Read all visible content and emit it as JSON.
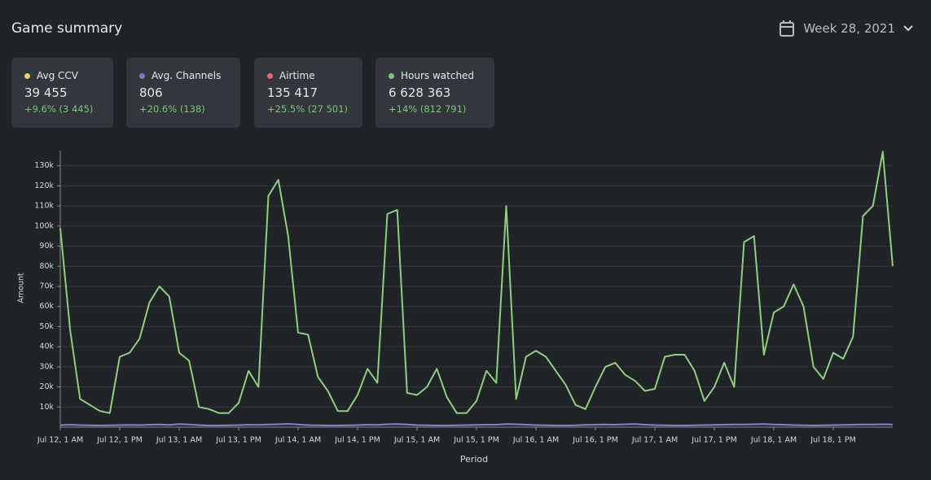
{
  "header": {
    "title": "Game summary",
    "date": "Week 28, 2021"
  },
  "cards": [
    {
      "label": "Avg CCV",
      "color": "#f2cf6b",
      "value": "39 455",
      "change": "+9.6% (3 445)"
    },
    {
      "label": "Avg. Channels",
      "color": "#7d78c8",
      "value": "806",
      "change": "+20.6% (138)"
    },
    {
      "label": "Airtime",
      "color": "#e8686a",
      "value": "135 417",
      "change": "+25.5% (27 501)"
    },
    {
      "label": "Hours watched",
      "color": "#7cc47a",
      "value": "6 628 363",
      "change": "+14% (812 791)"
    }
  ],
  "chart_data": {
    "type": "line",
    "x_label": "Period",
    "y_label": "Amount",
    "categories": [
      "Jul 12, 1 AM",
      null,
      null,
      null,
      null,
      null,
      "Jul 12, 1 PM",
      null,
      null,
      null,
      null,
      null,
      "Jul 13, 1 AM",
      null,
      null,
      null,
      null,
      null,
      "Jul 13, 1 PM",
      null,
      null,
      null,
      null,
      null,
      "Jul 14, 1 AM",
      null,
      null,
      null,
      null,
      null,
      "Jul 14, 1 PM",
      null,
      null,
      null,
      null,
      null,
      "Jul 15, 1 AM",
      null,
      null,
      null,
      null,
      null,
      "Jul 15, 1 PM",
      null,
      null,
      null,
      null,
      null,
      "Jul 16, 1 AM",
      null,
      null,
      null,
      null,
      null,
      "Jul 16, 1 PM",
      null,
      null,
      null,
      null,
      null,
      "Jul 17, 1 AM",
      null,
      null,
      null,
      null,
      null,
      "Jul 17, 1 PM",
      null,
      null,
      null,
      null,
      null,
      "Jul 18, 1 AM",
      null,
      null,
      null,
      null,
      null,
      "Jul 18, 1 PM",
      null,
      null,
      null,
      null,
      null,
      null
    ],
    "series": [
      {
        "color": "#8fcf7d",
        "values": [
          99000,
          48000,
          14000,
          11000,
          8000,
          7000,
          35000,
          37000,
          44000,
          62000,
          70000,
          65000,
          37000,
          33000,
          10000,
          9000,
          7000,
          7000,
          12000,
          28000,
          20000,
          115000,
          123000,
          95000,
          47000,
          46000,
          25000,
          18000,
          8000,
          8000,
          16000,
          29000,
          22000,
          106000,
          108000,
          17000,
          16000,
          20000,
          29000,
          15000,
          7000,
          7000,
          13000,
          28000,
          22000,
          110000,
          14000,
          35000,
          38000,
          35000,
          28000,
          21000,
          11000,
          9000,
          20000,
          30000,
          32000,
          26000,
          23000,
          18000,
          19000,
          35000,
          36000,
          36000,
          28000,
          13000,
          20000,
          32000,
          20000,
          92000,
          95000,
          36000,
          57000,
          60000,
          71000,
          60000,
          30000,
          24000,
          37000,
          34000,
          45000,
          105000,
          110000,
          137000,
          80000
        ]
      },
      {
        "color": "#8a7fc8",
        "values": [
          1000,
          1200,
          1000,
          900,
          800,
          900,
          1000,
          1100,
          1000,
          1200,
          1300,
          1100,
          1500,
          1300,
          1000,
          800,
          800,
          900,
          1000,
          1200,
          1100,
          1300,
          1400,
          1600,
          1300,
          1000,
          900,
          800,
          800,
          900,
          1000,
          1200,
          1100,
          1400,
          1500,
          1300,
          1000,
          900,
          800,
          800,
          900,
          1000,
          1100,
          1200,
          1200,
          1500,
          1400,
          1200,
          1000,
          900,
          800,
          800,
          900,
          1100,
          1200,
          1300,
          1200,
          1400,
          1500,
          1200,
          1000,
          900,
          800,
          800,
          900,
          1000,
          1100,
          1200,
          1300,
          1300,
          1400,
          1500,
          1300,
          1200,
          1000,
          900,
          800,
          900,
          1000,
          1100,
          1200,
          1300,
          1300,
          1400,
          1300
        ]
      }
    ],
    "ylim": [
      0,
      140000
    ],
    "yticks": [
      {
        "value": 10000,
        "label": "10k"
      },
      {
        "value": 20000,
        "label": "20k"
      },
      {
        "value": 30000,
        "label": "30k"
      },
      {
        "value": 40000,
        "label": "40k"
      },
      {
        "value": 50000,
        "label": "50k"
      },
      {
        "value": 60000,
        "label": "60k"
      },
      {
        "value": 70000,
        "label": "70k"
      },
      {
        "value": 80000,
        "label": "80k"
      },
      {
        "value": 90000,
        "label": "90k"
      },
      {
        "value": 100000,
        "label": "100k"
      },
      {
        "value": 110000,
        "label": "110k"
      },
      {
        "value": 120000,
        "label": "120k"
      },
      {
        "value": 130000,
        "label": "130k"
      }
    ],
    "grid": true
  }
}
